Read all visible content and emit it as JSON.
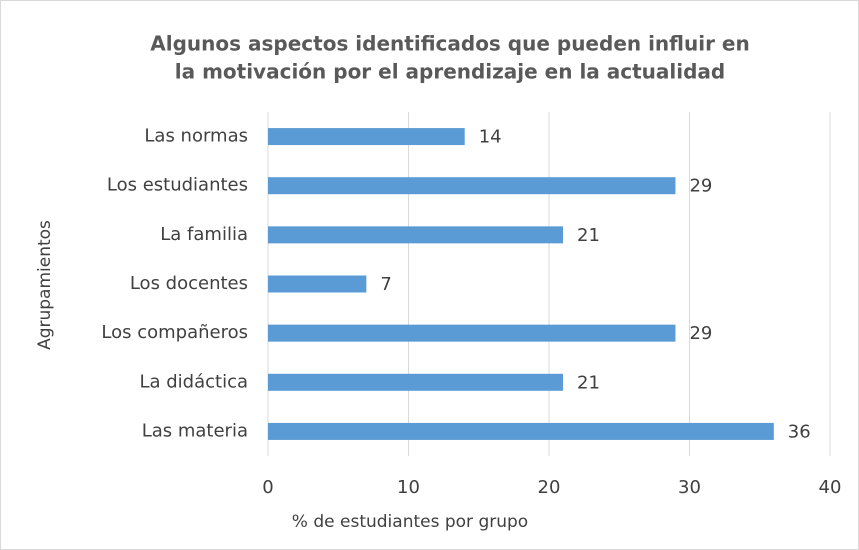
{
  "chart_data": {
    "type": "bar",
    "orientation": "horizontal",
    "title": [
      "Algunos aspectos identificados que pueden influir en",
      "la motivación por el aprendizaje en la actualidad"
    ],
    "xlabel": "% de estudiantes por grupo",
    "ylabel": "Agrupamientos",
    "categories": [
      "Las normas",
      "Los estudiantes",
      "La familia",
      "Los docentes",
      "Los compañeros",
      "La didáctica",
      "Las materia"
    ],
    "values": [
      14,
      29,
      21,
      7,
      29,
      21,
      36
    ],
    "color": "#5b9bd5",
    "xlim": [
      0,
      40
    ],
    "xticks": [
      0,
      10,
      20,
      30,
      40
    ],
    "grid": true
  }
}
